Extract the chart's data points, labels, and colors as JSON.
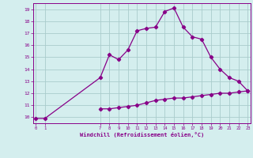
{
  "title": "",
  "xlabel": "Windchill (Refroidissement éolien,°C)",
  "background_color": "#d4eeee",
  "grid_color": "#aacccc",
  "line_color": "#880088",
  "upper_x": [
    0,
    1,
    7,
    8,
    9,
    10,
    11,
    12,
    13,
    14,
    15,
    16,
    17,
    18,
    19,
    20,
    21,
    22,
    23
  ],
  "upper_y": [
    9.9,
    9.9,
    13.3,
    15.2,
    14.8,
    15.6,
    17.2,
    17.4,
    17.5,
    18.8,
    19.1,
    17.5,
    16.7,
    16.5,
    15.0,
    14.0,
    13.3,
    13.0,
    12.2
  ],
  "lower_x": [
    7,
    8,
    9,
    10,
    11,
    12,
    13,
    14,
    15,
    16,
    17,
    18,
    19,
    20,
    21,
    22,
    23
  ],
  "lower_y": [
    10.7,
    10.7,
    10.8,
    10.9,
    11.0,
    11.2,
    11.4,
    11.5,
    11.6,
    11.6,
    11.7,
    11.8,
    11.9,
    12.0,
    12.0,
    12.1,
    12.2
  ],
  "xticks": [
    0,
    1,
    7,
    8,
    9,
    10,
    11,
    12,
    13,
    14,
    15,
    16,
    17,
    18,
    19,
    20,
    21,
    22,
    23
  ],
  "yticks": [
    10,
    11,
    12,
    13,
    14,
    15,
    16,
    17,
    18,
    19
  ],
  "xlim": [
    -0.3,
    23.3
  ],
  "ylim": [
    9.5,
    19.5
  ],
  "marker": "D",
  "markersize": 2.2,
  "linewidth": 0.9
}
